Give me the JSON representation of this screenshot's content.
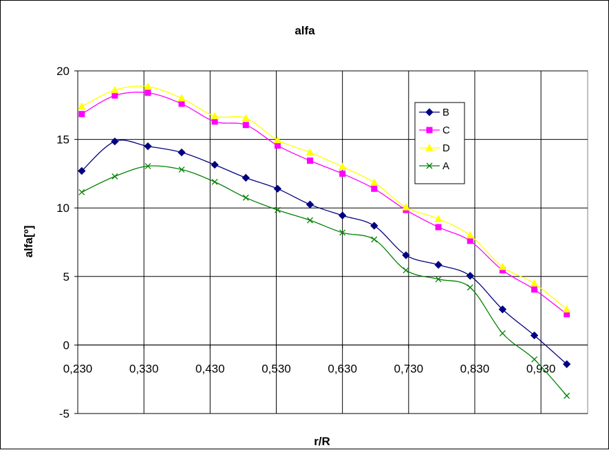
{
  "chart_data": {
    "type": "line",
    "title": "alfa",
    "xlabel": "r/R",
    "ylabel": "alfa[º]",
    "xlim": [
      0.23,
      1.0
    ],
    "ylim": [
      -5,
      20
    ],
    "xticks": [
      0.23,
      0.33,
      0.43,
      0.53,
      0.63,
      0.73,
      0.83,
      0.93
    ],
    "xtick_labels": [
      "0,230",
      "0,330",
      "0,430",
      "0,530",
      "0,630",
      "0,730",
      "0,830",
      "0,930"
    ],
    "yticks": [
      -5,
      0,
      5,
      10,
      15,
      20
    ],
    "ytick_labels": [
      "-5",
      "0",
      "5",
      "10",
      "15",
      "20"
    ],
    "grid": true,
    "legend_position": "upper-right-inside",
    "x": [
      0.236,
      0.286,
      0.336,
      0.387,
      0.437,
      0.484,
      0.532,
      0.581,
      0.63,
      0.678,
      0.726,
      0.775,
      0.823,
      0.872,
      0.92,
      0.969
    ],
    "series": [
      {
        "name": "B",
        "color": "#000080",
        "marker": "diamond",
        "values": [
          12.7,
          14.85,
          14.5,
          14.05,
          13.15,
          12.2,
          11.4,
          10.25,
          9.45,
          8.7,
          6.55,
          5.85,
          5.05,
          2.6,
          0.7,
          -1.4
        ]
      },
      {
        "name": "C",
        "color": "#ff00ff",
        "marker": "square",
        "values": [
          16.85,
          18.2,
          18.4,
          17.6,
          16.3,
          16.05,
          14.55,
          13.45,
          12.5,
          11.4,
          9.85,
          8.6,
          7.6,
          5.45,
          4.05,
          2.25
        ]
      },
      {
        "name": "D",
        "color": "#ffff00",
        "marker": "triangle",
        "values": [
          17.4,
          18.6,
          18.85,
          18.0,
          16.7,
          16.55,
          14.95,
          14.05,
          13.0,
          11.85,
          10.05,
          9.2,
          8.0,
          5.7,
          4.5,
          2.6
        ]
      },
      {
        "name": "A",
        "color": "#008000",
        "marker": "x",
        "values": [
          11.15,
          12.3,
          13.05,
          12.8,
          11.9,
          10.75,
          9.85,
          9.1,
          8.2,
          7.7,
          5.45,
          4.8,
          4.2,
          0.85,
          -1.05,
          -3.7
        ]
      }
    ]
  }
}
